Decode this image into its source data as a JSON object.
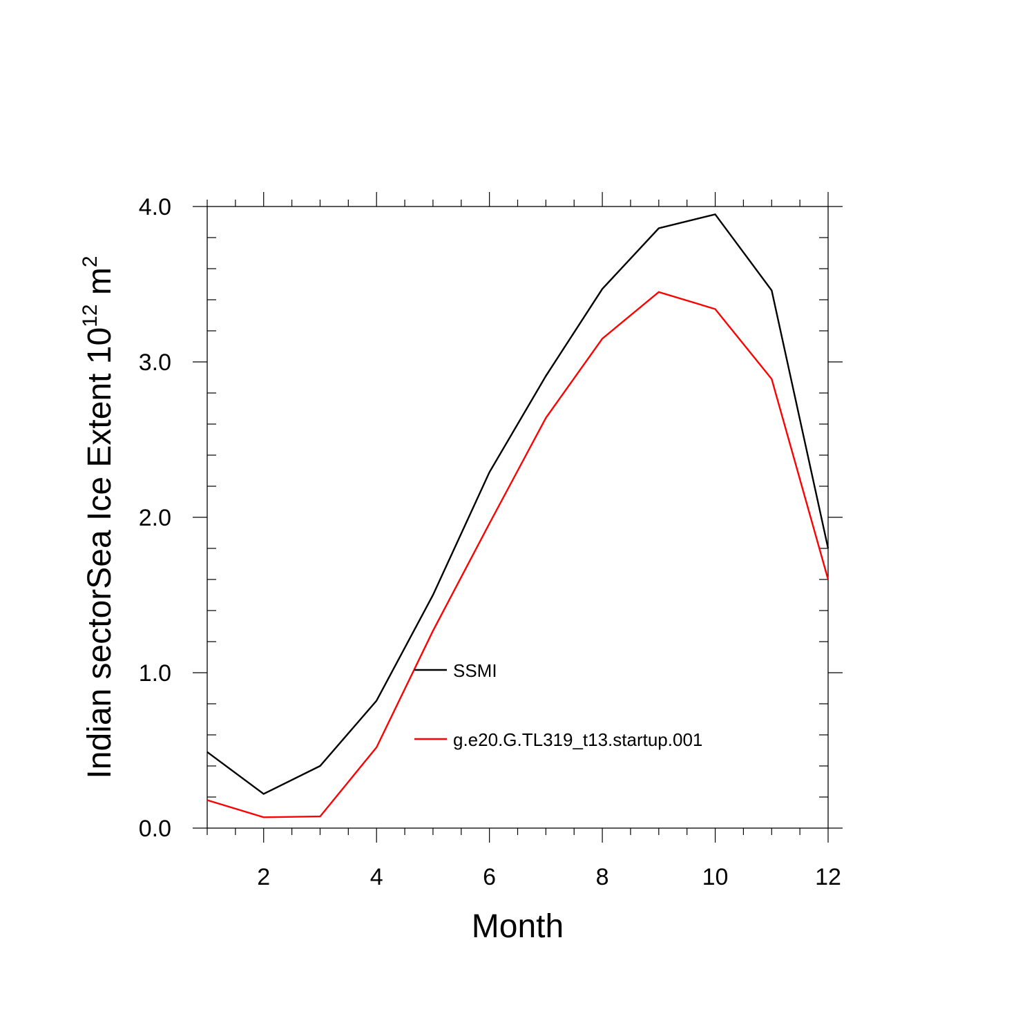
{
  "chart_data": {
    "type": "line",
    "title": "",
    "xlabel": "Month",
    "ylabel_main": "Indian sectorSea Ice Extent 10",
    "ylabel_sup1": "12",
    "ylabel_mid": " m",
    "ylabel_sup2": "2",
    "xlim": [
      1,
      12
    ],
    "ylim": [
      0.0,
      4.0
    ],
    "xticks": [
      2,
      4,
      6,
      8,
      10,
      12
    ],
    "yticks": [
      0.0,
      1.0,
      2.0,
      3.0,
      4.0
    ],
    "ytick_labels": [
      "0.0",
      "1.0",
      "2.0",
      "3.0",
      "4.0"
    ],
    "x": [
      1,
      2,
      3,
      4,
      5,
      6,
      7,
      8,
      9,
      10,
      11,
      12
    ],
    "series": [
      {
        "name": "SSMI",
        "color": "#000000",
        "values": [
          0.49,
          0.22,
          0.4,
          0.82,
          1.5,
          2.29,
          2.91,
          3.47,
          3.86,
          3.95,
          3.46,
          1.8
        ]
      },
      {
        "name": "g.e20.G.TL319_t13.startup.001",
        "color": "#ff0000",
        "values": [
          0.18,
          0.07,
          0.075,
          0.52,
          1.27,
          1.96,
          2.64,
          3.15,
          3.45,
          3.34,
          2.89,
          1.6
        ]
      }
    ],
    "legend_position": "center"
  }
}
